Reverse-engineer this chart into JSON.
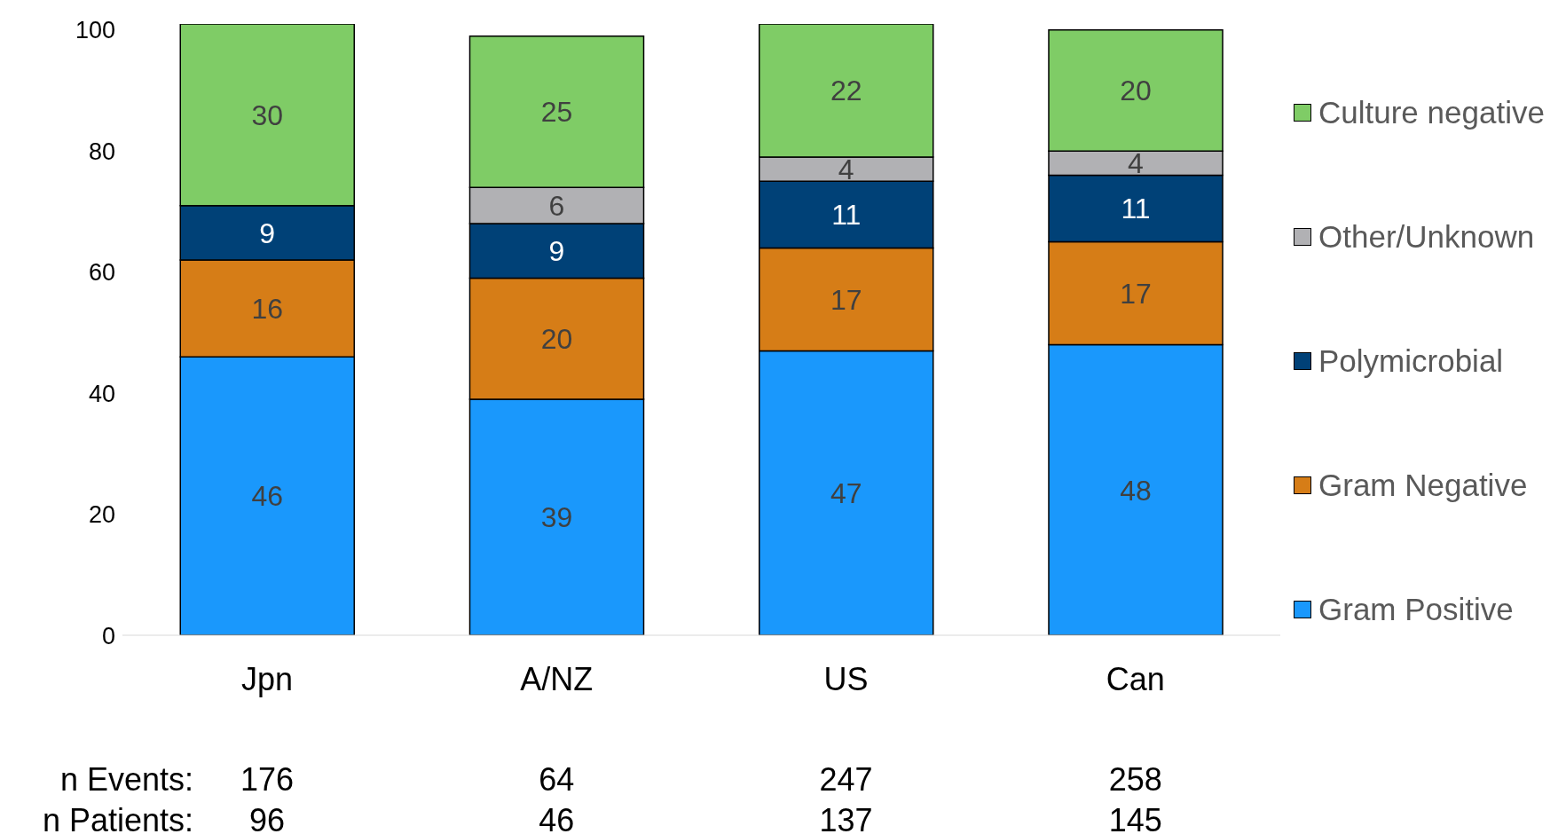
{
  "chart_data": {
    "type": "bar",
    "stacked": true,
    "categories": [
      "Jpn",
      "A/NZ",
      "US",
      "Can"
    ],
    "series": [
      {
        "name": "Gram Positive",
        "color": "#1a98fc",
        "values": [
          46,
          39,
          47,
          48
        ]
      },
      {
        "name": "Gram Negative",
        "color": "#d67d17",
        "values": [
          16,
          20,
          17,
          17
        ]
      },
      {
        "name": "Polymicrobial",
        "color": "#004177",
        "values": [
          9,
          9,
          11,
          11
        ]
      },
      {
        "name": "Other/Unknown",
        "color": "#b1b1b4",
        "values": [
          null,
          6,
          4,
          4
        ]
      },
      {
        "name": "Culture negative",
        "color": "#7fcc66",
        "values": [
          30,
          25,
          22,
          20
        ]
      }
    ],
    "ylim": [
      0,
      101
    ],
    "yticks": [
      0,
      20,
      40,
      60,
      80,
      100
    ],
    "grid": false,
    "legend": "right",
    "data_labels": true,
    "annotations": [
      "n Events:",
      "176",
      "64",
      "247",
      "258",
      "n Patients:",
      "96",
      "46",
      "137",
      "145"
    ]
  }
}
